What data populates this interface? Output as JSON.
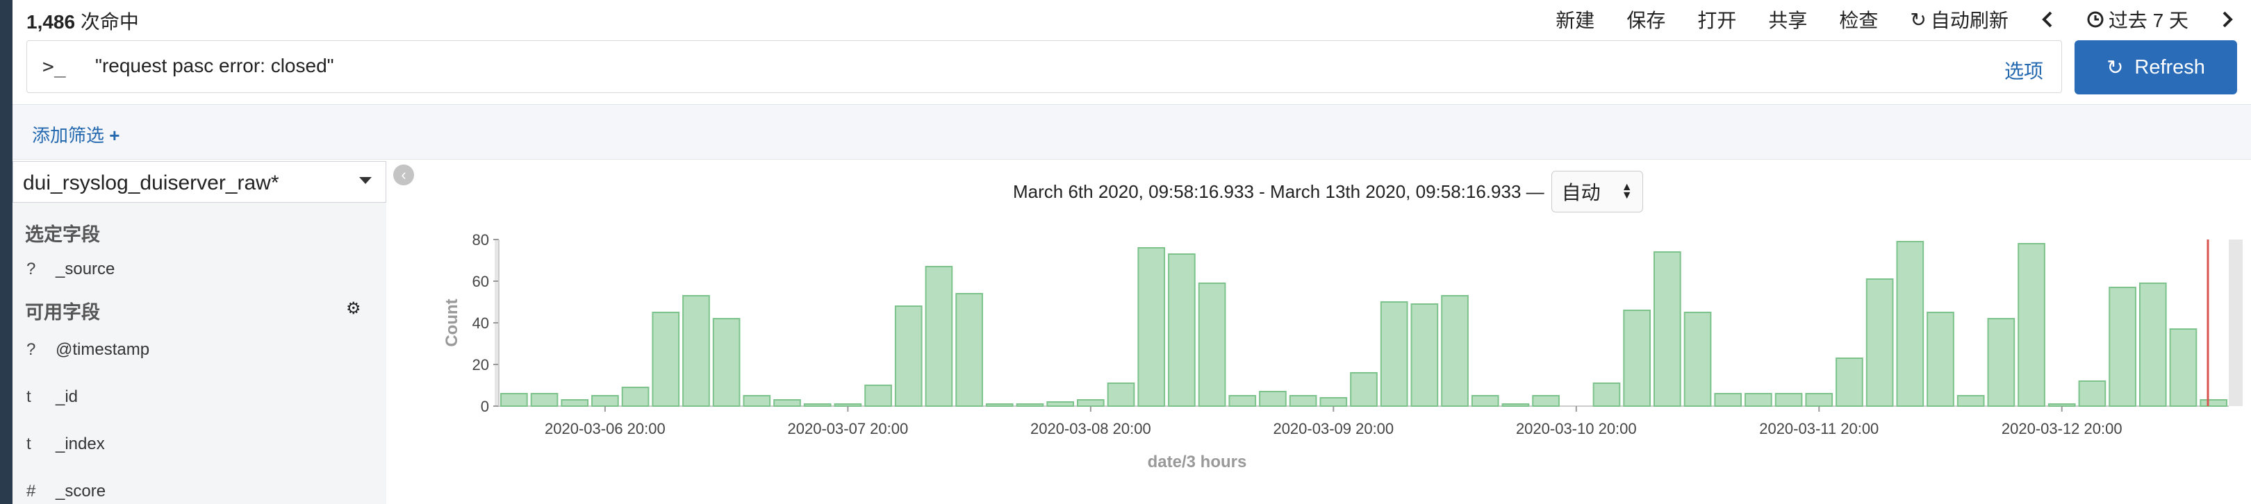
{
  "header": {
    "hits_count": "1,486",
    "hits_suffix": " 次命中",
    "menu": {
      "new": "新建",
      "save": "保存",
      "open": "打开",
      "share": "共享",
      "inspect": "检查",
      "auto_refresh": "自动刷新",
      "time_range": "过去 7 天"
    }
  },
  "query": {
    "prompt": ">_",
    "text": "\"request pasc error: closed\"",
    "options": "选项"
  },
  "refresh": {
    "label": "Refresh"
  },
  "filter": {
    "add_label": "添加筛选"
  },
  "sidebar": {
    "index_pattern": "dui_rsyslog_duiserver_raw*",
    "selected_title": "选定字段",
    "selected_fields": [
      {
        "type": "?",
        "name": "_source"
      }
    ],
    "available_title": "可用字段",
    "available_fields": [
      {
        "type": "?",
        "name": "@timestamp"
      },
      {
        "type": "t",
        "name": "_id"
      },
      {
        "type": "t",
        "name": "_index"
      },
      {
        "type": "#",
        "name": "_score"
      }
    ]
  },
  "chart_header": {
    "time_range": "March 6th 2020, 09:58:16.933 - March 13th 2020, 09:58:16.933 —",
    "interval": "自动"
  },
  "colors": {
    "bar_fill": "#b7dfbf",
    "bar_stroke": "#7cc38b",
    "accent": "#2a6cb8",
    "now_line": "#d9534f"
  },
  "chart_data": {
    "type": "bar",
    "xlabel": "date/3 hours",
    "ylabel": "Count",
    "ylim": [
      0,
      80
    ],
    "yticks": [
      0,
      20,
      40,
      60,
      80
    ],
    "xtick_labels": [
      {
        "bar_index": 3,
        "label": "2020-03-06 20:00"
      },
      {
        "bar_index": 11,
        "label": "2020-03-07 20:00"
      },
      {
        "bar_index": 19,
        "label": "2020-03-08 20:00"
      },
      {
        "bar_index": 27,
        "label": "2020-03-09 20:00"
      },
      {
        "bar_index": 35,
        "label": "2020-03-10 20:00"
      },
      {
        "bar_index": 43,
        "label": "2020-03-11 20:00"
      },
      {
        "bar_index": 51,
        "label": "2020-03-12 20:00"
      }
    ],
    "values": [
      6,
      6,
      3,
      5,
      9,
      45,
      53,
      42,
      5,
      3,
      1,
      1,
      10,
      48,
      67,
      54,
      1,
      1,
      2,
      3,
      11,
      76,
      73,
      59,
      5,
      7,
      5,
      4,
      16,
      50,
      49,
      53,
      5,
      1,
      5,
      0,
      11,
      46,
      74,
      45,
      6,
      6,
      6,
      6,
      23,
      61,
      79,
      45,
      5,
      42,
      78,
      1,
      12,
      57,
      59,
      37,
      3
    ],
    "grid": false
  }
}
